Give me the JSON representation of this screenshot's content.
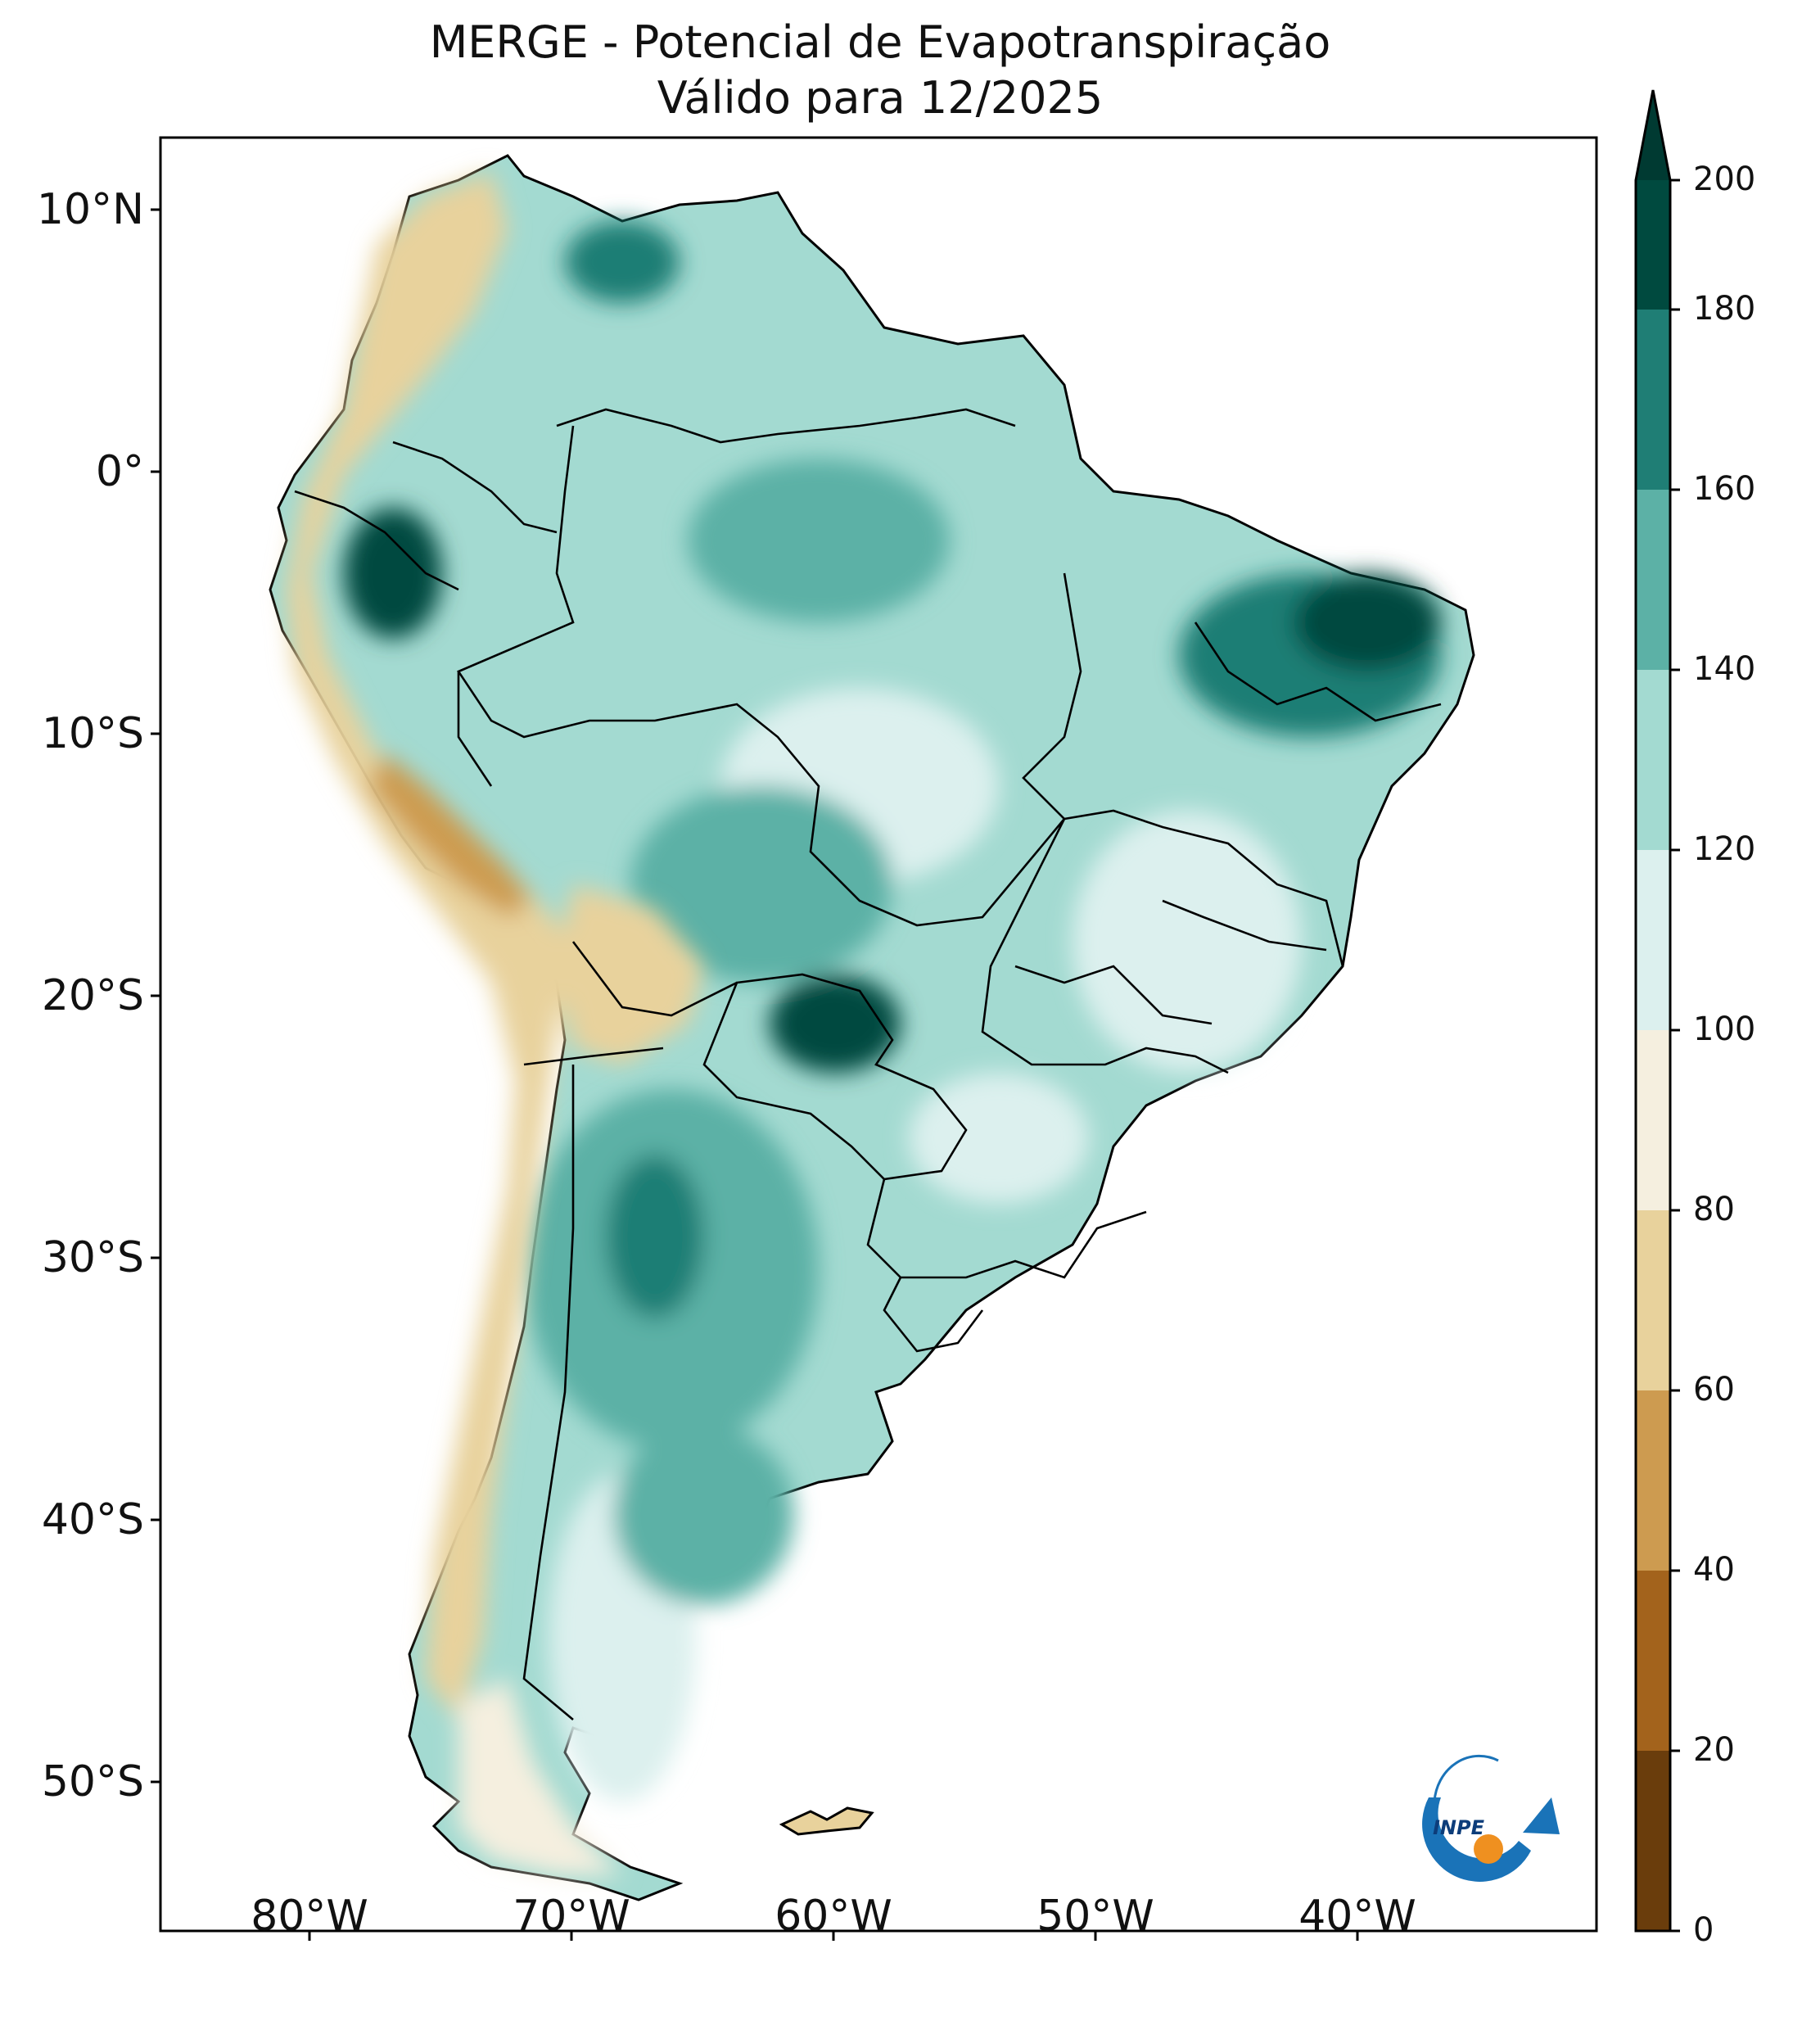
{
  "title": {
    "line1": "MERGE - Potencial de Evapotranspiração",
    "line2": "Válido para 12/2025"
  },
  "axes": {
    "lat_labels": [
      "10°N",
      "0°",
      "10°S",
      "20°S",
      "30°S",
      "40°S",
      "50°S"
    ],
    "lon_labels": [
      "80°W",
      "70°W",
      "60°W",
      "50°W",
      "40°W"
    ]
  },
  "colorbar": {
    "ticks": [
      "0",
      "20",
      "40",
      "60",
      "80",
      "100",
      "120",
      "140",
      "160",
      "180",
      "200"
    ],
    "colors": [
      "#6a3d0c",
      "#a3631c",
      "#cd9b50",
      "#e8d29c",
      "#f5efdf",
      "#dcf0ee",
      "#a3dad1",
      "#5cb1a6",
      "#1f7e75",
      "#004a3f",
      "#003a32"
    ],
    "extend": "max"
  },
  "logo": {
    "text": "INPE",
    "icon": "inpe-logo-icon"
  },
  "map": {
    "region": "South America",
    "background_color": "#ffffff",
    "border_color": "#000000"
  }
}
